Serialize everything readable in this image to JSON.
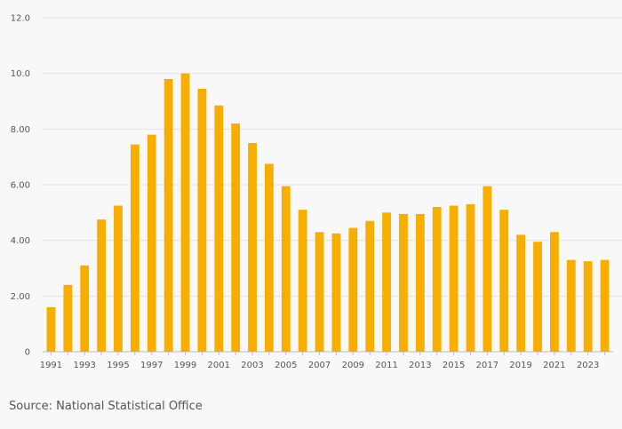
{
  "chart_data": {
    "type": "bar",
    "title": "",
    "xlabel": "",
    "ylabel": "",
    "ylim": [
      0,
      12
    ],
    "y_ticks": [
      "0",
      "2.00",
      "4.00",
      "6.00",
      "8.00",
      "10.0",
      "12.0"
    ],
    "y_tick_values": [
      0,
      2,
      4,
      6,
      8,
      10,
      12
    ],
    "grid": true,
    "categories": [
      "1991",
      "1992",
      "1993",
      "1994",
      "1995",
      "1996",
      "1997",
      "1998",
      "1999",
      "2000",
      "2001",
      "2002",
      "2003",
      "2004",
      "2005",
      "2006",
      "2007",
      "2008",
      "2009",
      "2010",
      "2011",
      "2012",
      "2013",
      "2014",
      "2015",
      "2016",
      "2017",
      "2018",
      "2019",
      "2020",
      "2021",
      "2022",
      "2023",
      "2024"
    ],
    "x_tick_labels": [
      "1991",
      "1993",
      "1995",
      "1997",
      "1999",
      "2001",
      "2003",
      "2005",
      "2007",
      "2009",
      "2011",
      "2013",
      "2015",
      "2017",
      "2019",
      "2021",
      "2023"
    ],
    "values": [
      1.6,
      2.4,
      3.1,
      4.75,
      5.25,
      7.45,
      7.8,
      9.8,
      10.0,
      9.45,
      8.85,
      8.2,
      7.5,
      6.75,
      5.95,
      5.1,
      4.3,
      4.25,
      4.45,
      4.7,
      5.0,
      4.95,
      4.95,
      5.2,
      5.25,
      5.3,
      5.95,
      5.1,
      4.2,
      3.95,
      4.3,
      3.3,
      3.25,
      3.3
    ],
    "colors": {
      "bar": "#f7ae00",
      "grid": "#e2e2e2",
      "axis": "#bdbdbd"
    }
  },
  "footer": {
    "source": "Source: National Statistical Office"
  }
}
